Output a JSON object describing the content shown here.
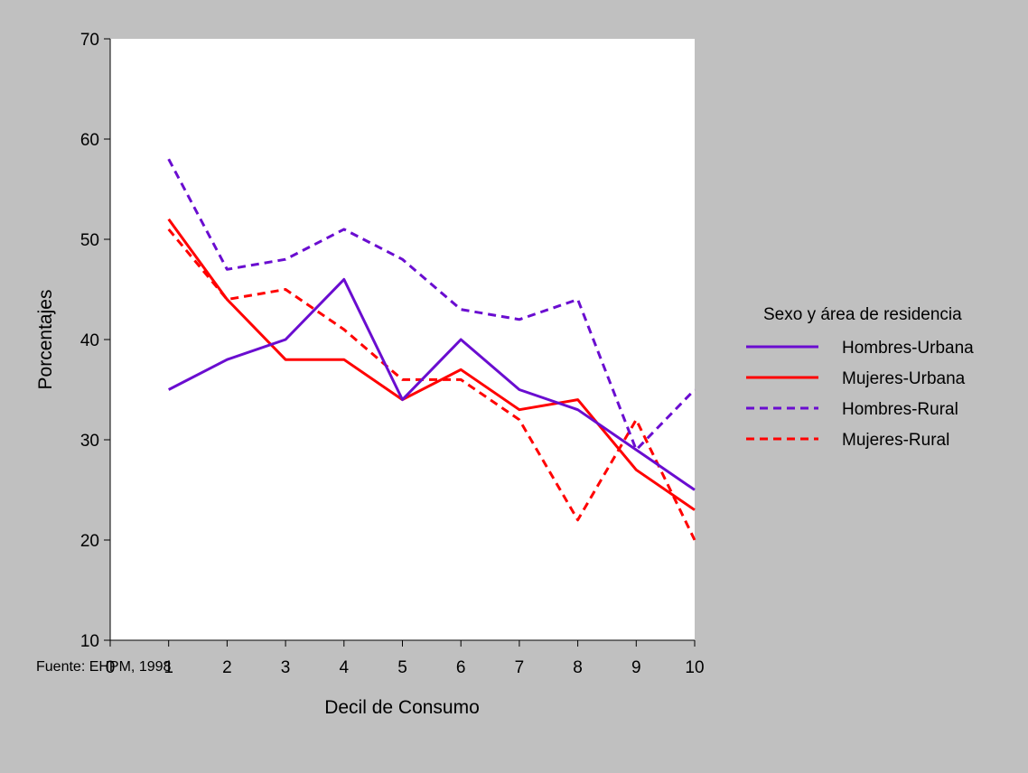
{
  "source_note": "Fuente: EHPM, 1998",
  "chart_data": {
    "type": "line",
    "title": "",
    "xlabel": "Decil de Consumo",
    "ylabel": "Porcentajes",
    "xlim": [
      0,
      10
    ],
    "ylim": [
      10,
      70
    ],
    "xticks": [
      "0",
      "1",
      "2",
      "3",
      "4",
      "5",
      "6",
      "7",
      "8",
      "9",
      "10"
    ],
    "yticks": [
      "10",
      "20",
      "30",
      "40",
      "50",
      "60",
      "70"
    ],
    "x": [
      1,
      2,
      3,
      4,
      5,
      6,
      7,
      8,
      9,
      10
    ],
    "grid": false,
    "legend": {
      "title": "Sexo y área de residencia",
      "placement": "right"
    },
    "series": [
      {
        "name": "Hombres-Urbana",
        "color": "#6a0dd0",
        "dash": "solid",
        "values": [
          35,
          38,
          40,
          46,
          34,
          40,
          35,
          33,
          29,
          25
        ]
      },
      {
        "name": "Mujeres-Urbana",
        "color": "#ff0000",
        "dash": "solid",
        "values": [
          52,
          44,
          38,
          38,
          34,
          37,
          33,
          34,
          27,
          23
        ]
      },
      {
        "name": "Hombres-Rural",
        "color": "#6a0dd0",
        "dash": "dashed",
        "values": [
          58,
          47,
          48,
          51,
          48,
          43,
          42,
          44,
          29,
          35
        ]
      },
      {
        "name": "Mujeres-Rural",
        "color": "#ff0000",
        "dash": "dashed",
        "values": [
          51,
          44,
          45,
          41,
          36,
          36,
          32,
          22,
          32,
          20
        ]
      }
    ]
  }
}
